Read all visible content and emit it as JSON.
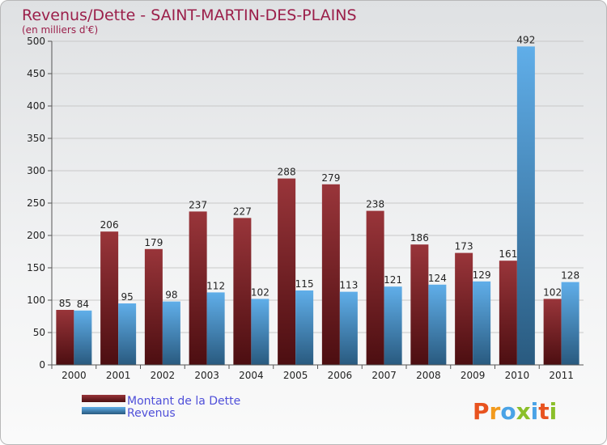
{
  "chart_data": {
    "type": "bar",
    "title": "Revenus/Dette - SAINT-MARTIN-DES-PLAINS",
    "subtitle": "(en milliers d'€)",
    "categories": [
      "2000",
      "2001",
      "2002",
      "2003",
      "2004",
      "2005",
      "2006",
      "2007",
      "2008",
      "2009",
      "2010",
      "2011"
    ],
    "series": [
      {
        "name": "Montant de la Dette",
        "values": [
          85,
          206,
          179,
          237,
          227,
          288,
          279,
          238,
          186,
          173,
          161,
          102
        ],
        "color": "#8b1a1f"
      },
      {
        "name": "Revenus",
        "values": [
          84,
          95,
          98,
          112,
          102,
          115,
          113,
          121,
          124,
          129,
          492,
          128
        ],
        "color": "#4aa3e6"
      }
    ],
    "ylim": [
      0,
      500
    ],
    "yticks": [
      0,
      50,
      100,
      150,
      200,
      250,
      300,
      350,
      400,
      450,
      500
    ],
    "grid": true,
    "legend": "bottom-left"
  },
  "brand": {
    "letters": [
      "P",
      "r",
      "o",
      "x",
      "i",
      "t",
      "i"
    ],
    "colors": [
      "#e8531f",
      "#f29a1c",
      "#4aa3e6",
      "#8bbf2a",
      "#4aa3e6",
      "#e8531f",
      "#8bbf2a"
    ]
  }
}
